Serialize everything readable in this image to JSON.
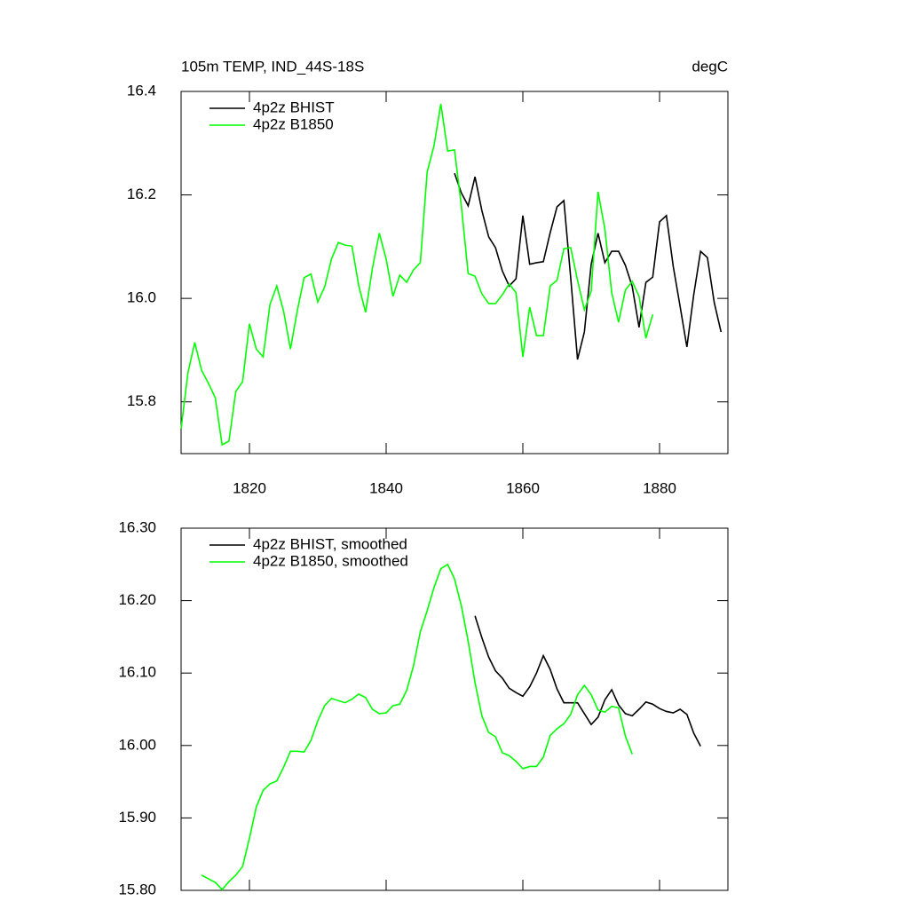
{
  "chart_data": [
    {
      "type": "line",
      "title": "105m TEMP, IND_44S-18S",
      "right_title": "degC",
      "xlim": [
        1810,
        1890
      ],
      "xticks": [
        1820,
        1840,
        1860,
        1880
      ],
      "ylim": [
        15.7,
        16.4
      ],
      "yticks": [
        {
          "value": 15.8,
          "label": "15.8"
        },
        {
          "value": 16,
          "label": "16.0"
        },
        {
          "value": 16.2,
          "label": "16.2"
        },
        {
          "value": 16.4,
          "label": "16.4"
        }
      ],
      "legend": "upper left",
      "series": [
        {
          "name": "4p2z BHIST",
          "color": "#000000",
          "x": [
            1850,
            1851,
            1852,
            1853,
            1854,
            1855,
            1856,
            1857,
            1858,
            1859,
            1860,
            1861,
            1862,
            1863,
            1864,
            1865,
            1866,
            1867,
            1868,
            1869,
            1870,
            1871,
            1872,
            1873,
            1874,
            1875,
            1876,
            1877,
            1878,
            1879,
            1880,
            1881,
            1882,
            1883,
            1884,
            1885,
            1886,
            1887,
            1888,
            1889
          ],
          "values": [
            16.242,
            16.204,
            16.179,
            16.235,
            16.17,
            16.119,
            16.098,
            16.053,
            16.024,
            16.038,
            16.16,
            16.066,
            16.069,
            16.071,
            16.127,
            16.177,
            16.189,
            16.04,
            15.882,
            15.935,
            16.066,
            16.126,
            16.069,
            16.091,
            16.091,
            16.064,
            16.023,
            15.944,
            16.031,
            16.041,
            16.148,
            16.16,
            16.062,
            15.985,
            15.906,
            16.007,
            16.091,
            16.079,
            15.992,
            15.935
          ]
        },
        {
          "name": "4p2z B1850",
          "color": "#00ff00",
          "x": [
            1810,
            1811,
            1812,
            1813,
            1814,
            1815,
            1816,
            1817,
            1818,
            1819,
            1820,
            1821,
            1822,
            1823,
            1824,
            1825,
            1826,
            1827,
            1828,
            1829,
            1830,
            1831,
            1832,
            1833,
            1834,
            1835,
            1836,
            1837,
            1838,
            1839,
            1840,
            1841,
            1842,
            1843,
            1844,
            1845,
            1846,
            1847,
            1848,
            1849,
            1850,
            1851,
            1852,
            1853,
            1854,
            1855,
            1856,
            1857,
            1858,
            1859,
            1860,
            1861,
            1862,
            1863,
            1864,
            1865,
            1866,
            1867,
            1868,
            1869,
            1870,
            1871,
            1872,
            1873,
            1874,
            1875,
            1876,
            1877,
            1878,
            1879
          ],
          "values": [
            15.748,
            15.856,
            15.915,
            15.861,
            15.836,
            15.808,
            15.717,
            15.724,
            15.82,
            15.839,
            15.951,
            15.902,
            15.887,
            15.988,
            16.024,
            15.975,
            15.902,
            15.976,
            16.04,
            16.047,
            15.993,
            16.022,
            16.076,
            16.108,
            16.103,
            16.101,
            16.024,
            15.973,
            16.059,
            16.126,
            16.076,
            16.004,
            16.045,
            16.031,
            16.055,
            16.069,
            16.244,
            16.295,
            16.376,
            16.285,
            16.287,
            16.179,
            16.048,
            16.043,
            16.009,
            15.99,
            15.99,
            16.007,
            16.028,
            16.011,
            15.887,
            15.983,
            15.928,
            15.928,
            16.024,
            16.035,
            16.096,
            16.098,
            16.035,
            15.978,
            16.014,
            16.206,
            16.134,
            16.011,
            15.954,
            16.016,
            16.033,
            16.004,
            15.923,
            15.969
          ]
        }
      ]
    },
    {
      "type": "line",
      "xlim": [
        1810,
        1890
      ],
      "xticks": [
        1820,
        1840,
        1860,
        1880
      ],
      "ylim": [
        15.8,
        16.3
      ],
      "yticks": [
        {
          "value": 15.8,
          "label": "15.80"
        },
        {
          "value": 15.9,
          "label": "15.90"
        },
        {
          "value": 16,
          "label": "16.00"
        },
        {
          "value": 16.1,
          "label": "16.10"
        },
        {
          "value": 16.2,
          "label": "16.20"
        },
        {
          "value": 16.3,
          "label": "16.30"
        }
      ],
      "legend": "upper left",
      "series": [
        {
          "name": "4p2z BHIST, smoothed",
          "color": "#000000",
          "x": [
            1853,
            1854,
            1855,
            1856,
            1857,
            1858,
            1859,
            1860,
            1861,
            1862,
            1863,
            1864,
            1865,
            1866,
            1867,
            1868,
            1869,
            1870,
            1871,
            1872,
            1873,
            1874,
            1875,
            1876,
            1877,
            1878,
            1879,
            1880,
            1881,
            1882,
            1883,
            1884,
            1885,
            1886
          ],
          "values": [
            16.179,
            16.149,
            16.122,
            16.103,
            16.093,
            16.079,
            16.073,
            16.068,
            16.081,
            16.1,
            16.124,
            16.105,
            16.078,
            16.059,
            16.059,
            16.059,
            16.044,
            16.029,
            16.039,
            16.063,
            16.077,
            16.056,
            16.044,
            16.041,
            16.05,
            16.06,
            16.057,
            16.051,
            16.047,
            16.045,
            16.05,
            16.043,
            16.017,
            15.999
          ]
        },
        {
          "name": "4p2z B1850, smoothed",
          "color": "#00ff00",
          "x": [
            1813,
            1814,
            1815,
            1816,
            1817,
            1818,
            1819,
            1820,
            1821,
            1822,
            1823,
            1824,
            1825,
            1826,
            1827,
            1828,
            1829,
            1830,
            1831,
            1832,
            1833,
            1834,
            1835,
            1836,
            1837,
            1838,
            1839,
            1840,
            1841,
            1842,
            1843,
            1844,
            1845,
            1846,
            1847,
            1848,
            1849,
            1850,
            1851,
            1852,
            1853,
            1854,
            1855,
            1856,
            1857,
            1858,
            1859,
            1860,
            1861,
            1862,
            1863,
            1864,
            1865,
            1866,
            1867,
            1868,
            1869,
            1870,
            1871,
            1872,
            1873,
            1874,
            1875,
            1876
          ],
          "values": [
            15.821,
            15.816,
            15.811,
            15.801,
            15.812,
            15.821,
            15.833,
            15.872,
            15.915,
            15.938,
            15.947,
            15.951,
            15.97,
            15.992,
            15.992,
            15.991,
            16.007,
            16.034,
            16.055,
            16.065,
            16.062,
            16.059,
            16.064,
            16.071,
            16.066,
            16.05,
            16.044,
            16.045,
            16.055,
            16.057,
            16.076,
            16.11,
            16.157,
            16.186,
            16.218,
            16.244,
            16.25,
            16.23,
            16.193,
            16.144,
            16.087,
            16.041,
            16.018,
            16.012,
            15.99,
            15.986,
            15.978,
            15.968,
            15.971,
            15.971,
            15.984,
            16.014,
            16.023,
            16.03,
            16.043,
            16.07,
            16.083,
            16.07,
            16.049,
            16.046,
            16.054,
            16.052,
            16.013,
            15.988
          ]
        }
      ]
    }
  ]
}
